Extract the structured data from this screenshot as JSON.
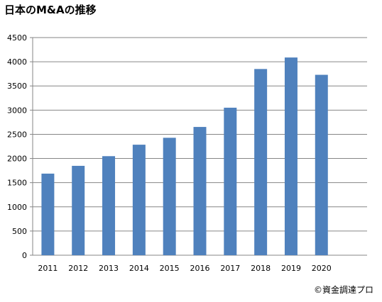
{
  "chart_data": {
    "type": "bar",
    "title": "日本のM&Aの推移",
    "categories": [
      "2011",
      "2012",
      "2013",
      "2014",
      "2015",
      "2016",
      "2017",
      "2018",
      "2019",
      "2020"
    ],
    "values": [
      1687,
      1848,
      2048,
      2285,
      2428,
      2652,
      3050,
      3850,
      4088,
      3730
    ],
    "ylim": [
      0,
      4500
    ],
    "yticks": [
      0,
      500,
      1000,
      1500,
      2000,
      2500,
      3000,
      3500,
      4000,
      4500
    ],
    "xlabel": "",
    "ylabel": "",
    "grid": true,
    "legend": "none",
    "bar_color": "#4f81bd",
    "grid_color": "#868686"
  },
  "credit": "©資金調達プロ"
}
